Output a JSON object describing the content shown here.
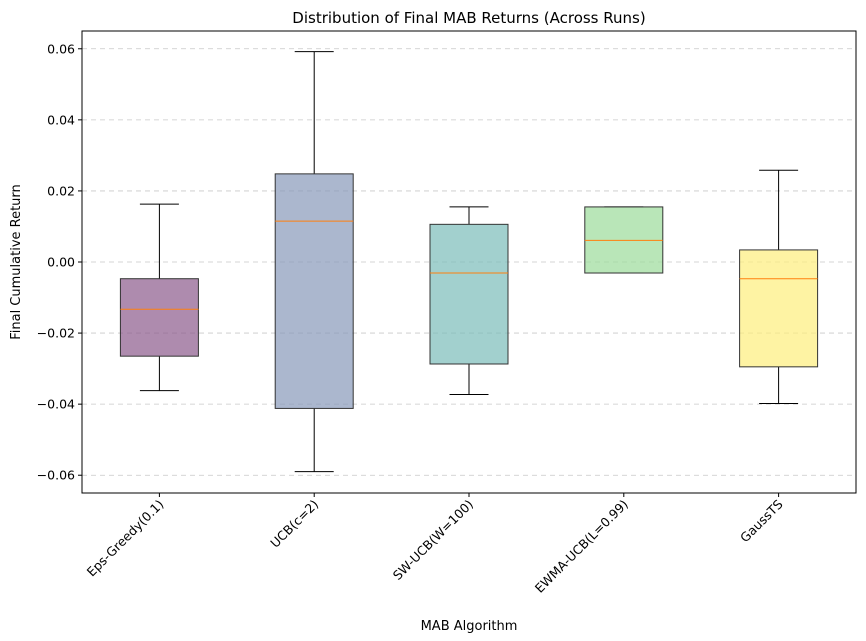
{
  "chart_data": {
    "type": "boxplot",
    "title": "Distribution of Final MAB Returns (Across Runs)",
    "xlabel": "MAB Algorithm",
    "ylabel": "Final Cumulative Return",
    "ylim": [
      -0.065,
      0.065
    ],
    "yticks": [
      -0.06,
      -0.04,
      -0.02,
      0.0,
      0.02,
      0.04,
      0.06
    ],
    "ytick_labels": [
      "−0.06",
      "−0.04",
      "−0.02",
      "0.00",
      "0.02",
      "0.04",
      "0.06"
    ],
    "grid": "y-dashed",
    "series": [
      {
        "name": "Eps-Greedy(0.1)",
        "whisker_low": -0.0362,
        "q1": -0.0265,
        "median": -0.0133,
        "q3": -0.0047,
        "whisker_high": 0.0163,
        "color": "#8b5a8c"
      },
      {
        "name": "UCB(c=2)",
        "whisker_low": -0.059,
        "q1": -0.0412,
        "median": 0.0115,
        "q3": 0.0248,
        "whisker_high": 0.0592,
        "color": "#8899b9"
      },
      {
        "name": "SW-UCB(W=100)",
        "whisker_low": -0.0373,
        "q1": -0.0287,
        "median": -0.0031,
        "q3": 0.0106,
        "whisker_high": 0.0155,
        "color": "#7bbcb9"
      },
      {
        "name": "EWMA-UCB(L=0.99)",
        "whisker_low": -0.0031,
        "q1": -0.0031,
        "median": 0.0061,
        "q3": 0.0155,
        "whisker_high": 0.0155,
        "color": "#9bdc9a"
      },
      {
        "name": "GaussTS",
        "whisker_low": -0.0398,
        "q1": -0.0295,
        "median": -0.0047,
        "q3": 0.0034,
        "whisker_high": 0.0258,
        "color": "#fdee7c"
      }
    ],
    "median_color": "#ff7f0e"
  }
}
